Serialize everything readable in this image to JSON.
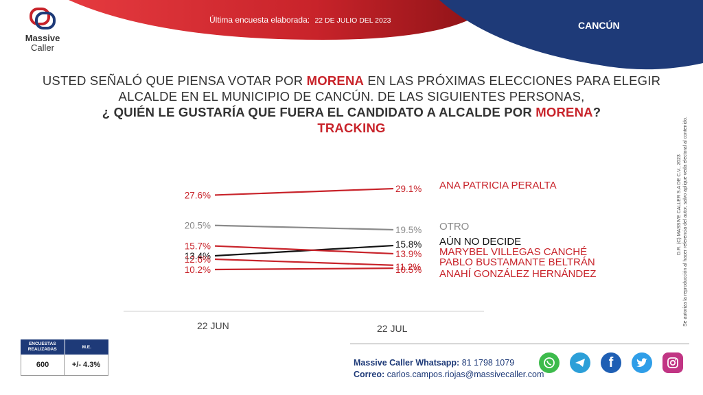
{
  "header": {
    "survey_label": "Última encuesta elaborada:",
    "survey_date": "22 DE JULIO DEL 2023",
    "city": "CANCÚN"
  },
  "logo": {
    "line1": "Massive",
    "line2": "Caller"
  },
  "question": {
    "part1": "USTED SEÑALÓ QUE PIENSA VOTAR POR ",
    "party1": "MORENA",
    "part2": " EN LAS PRÓXIMAS ELECCIONES PARA ELEGIR",
    "line2": "ALCALDE EN EL MUNICIPIO DE CANCÚN. DE LAS SIGUIENTES PERSONAS,",
    "part3": "¿ QUIÉN LE GUSTARÍA QUE FUERA EL CANDIDATO A ALCALDE POR ",
    "party2": "MORENA",
    "part4": "?",
    "subtitle": "TRACKING"
  },
  "chart_data": {
    "type": "line",
    "title": "TRACKING",
    "x": [
      "22 JUN",
      "22 JUL"
    ],
    "series": [
      {
        "name": "ANA PATRICIA PERALTA",
        "values": [
          27.6,
          29.1
        ],
        "labels": [
          "27.6%",
          "29.1%"
        ],
        "color": "#c8232a"
      },
      {
        "name": "OTRO",
        "values": [
          20.5,
          19.5
        ],
        "labels": [
          "20.5%",
          "19.5%"
        ],
        "color": "#8a8a8a"
      },
      {
        "name": "AÚN NO DECIDE",
        "values": [
          13.4,
          15.8
        ],
        "labels": [
          "13.4%",
          "15.8%"
        ],
        "color": "#111111"
      },
      {
        "name": "MARYBEL VILLEGAS CANCHÉ",
        "values": [
          15.7,
          13.9
        ],
        "labels": [
          "15.7%",
          "13.9%"
        ],
        "color": "#c8232a"
      },
      {
        "name": "PABLO BUSTAMANTE BELTRÁN",
        "values": [
          12.6,
          11.2
        ],
        "labels": [
          "12.6%",
          "11.2%"
        ],
        "color": "#c8232a"
      },
      {
        "name": "ANAHÍ GONZÁLEZ HERNÁNDEZ",
        "values": [
          10.2,
          10.5
        ],
        "labels": [
          "10.2%",
          "10.5%"
        ],
        "color": "#c8232a"
      }
    ],
    "grid": false,
    "legend": "right"
  },
  "stats": {
    "col1_header": "ENCUESTAS REALIZADAS",
    "col2_header": "M.E.",
    "col1_value": "600",
    "col2_value": "+/- 4.3%"
  },
  "contact": {
    "whatsapp_label": "Massive Caller Whatsapp:",
    "whatsapp_number": "81 1798 1079",
    "email_label": "Correo:",
    "email": "carlos.campos.riojas@massivecaller.com"
  },
  "side_note": {
    "line1": "D.R. (C) MASSIVE CALLER S.A DE C.V., 2023",
    "line2": "Se autoriza la reproducción al hacer referencia del autor, salvo aplique veda electoral al contenido."
  },
  "social": [
    {
      "icon": "whatsapp-icon",
      "color": "#3dbb4c"
    },
    {
      "icon": "telegram-icon",
      "color": "#2c9fd8"
    },
    {
      "icon": "facebook-icon",
      "color": "#1f5fb4"
    },
    {
      "icon": "twitter-icon",
      "color": "#2f9ee8"
    },
    {
      "icon": "instagram-icon",
      "color": "#c13584"
    }
  ]
}
